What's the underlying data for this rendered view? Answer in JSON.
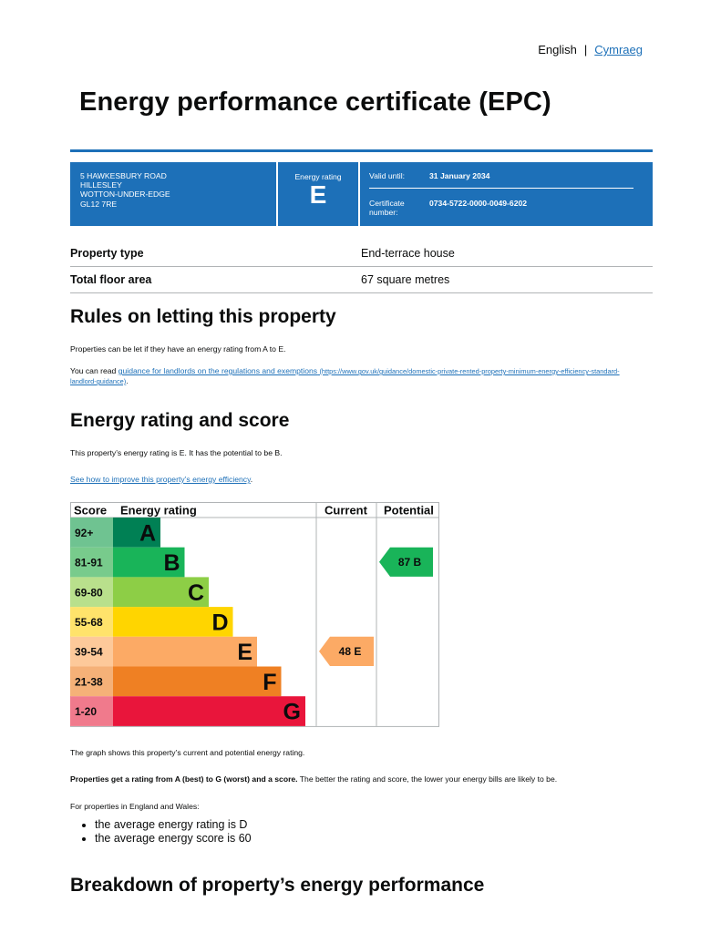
{
  "lang": {
    "current": "English",
    "alternate": "Cymraeg"
  },
  "title": "Energy performance certificate (EPC)",
  "banner": {
    "address_lines": [
      "5 HAWKESBURY ROAD",
      "HILLESLEY",
      "WOTTON-UNDER-EDGE",
      "GL12 7RE"
    ],
    "rating_label": "Energy rating",
    "rating_value": "E",
    "valid_label": "Valid until:",
    "valid_value": "31 January 2034",
    "cert_label": "Certificate number:",
    "cert_value": "0734-5722-0000-0049-6202"
  },
  "summary": [
    {
      "label": "Property type",
      "value": "End-terrace house"
    },
    {
      "label": "Total floor area",
      "value": "67 square metres"
    }
  ],
  "rules": {
    "heading": "Rules on letting this property",
    "para1": "Properties can be let if they have an energy rating from A to E.",
    "para2_prefix": "You can read ",
    "para2_link": "guidance for landlords on the regulations and exemptions",
    "para2_url": "(https://www.gov.uk/guidance/domestic-private-rented-property-minimum-energy-efficiency-standard-landlord-guidance)",
    "para2_suffix": "."
  },
  "score": {
    "heading": "Energy rating and score",
    "para1": "This property’s energy rating is E. It has the potential to be B.",
    "link": "See how to improve this property’s energy efficiency",
    "link_suffix": "."
  },
  "chart_data": {
    "type": "bar",
    "headers": [
      "Score",
      "Energy rating",
      "Current",
      "Potential"
    ],
    "bands": [
      {
        "score": "92+",
        "letter": "A",
        "color": "#008054",
        "light": "#6fc391"
      },
      {
        "score": "81-91",
        "letter": "B",
        "color": "#19b459",
        "light": "#78cb8c"
      },
      {
        "score": "69-80",
        "letter": "C",
        "color": "#8dce46",
        "light": "#b9e08c"
      },
      {
        "score": "55-68",
        "letter": "D",
        "color": "#ffd500",
        "light": "#ffe36b"
      },
      {
        "score": "39-54",
        "letter": "E",
        "color": "#fcaa65",
        "light": "#fdc99a"
      },
      {
        "score": "21-38",
        "letter": "F",
        "color": "#ef8023",
        "light": "#f5b178"
      },
      {
        "score": "1-20",
        "letter": "G",
        "color": "#e9153b",
        "light": "#f07a8c"
      }
    ],
    "current": {
      "value": 48,
      "letter": "E",
      "color": "#fcaa65"
    },
    "potential": {
      "value": 87,
      "letter": "B",
      "color": "#19b459"
    }
  },
  "after_graph": {
    "para1": "The graph shows this property’s current and potential energy rating.",
    "para2_bold": "Properties get a rating from A (best) to G (worst) and a score.",
    "para2_rest": " The better the rating and score, the lower your energy bills are likely to be.",
    "para3": "For properties in England and Wales:",
    "bullets": [
      "the average energy rating is D",
      "the average energy score is 60"
    ]
  },
  "breakdown": {
    "heading": "Breakdown of property’s energy performance"
  }
}
